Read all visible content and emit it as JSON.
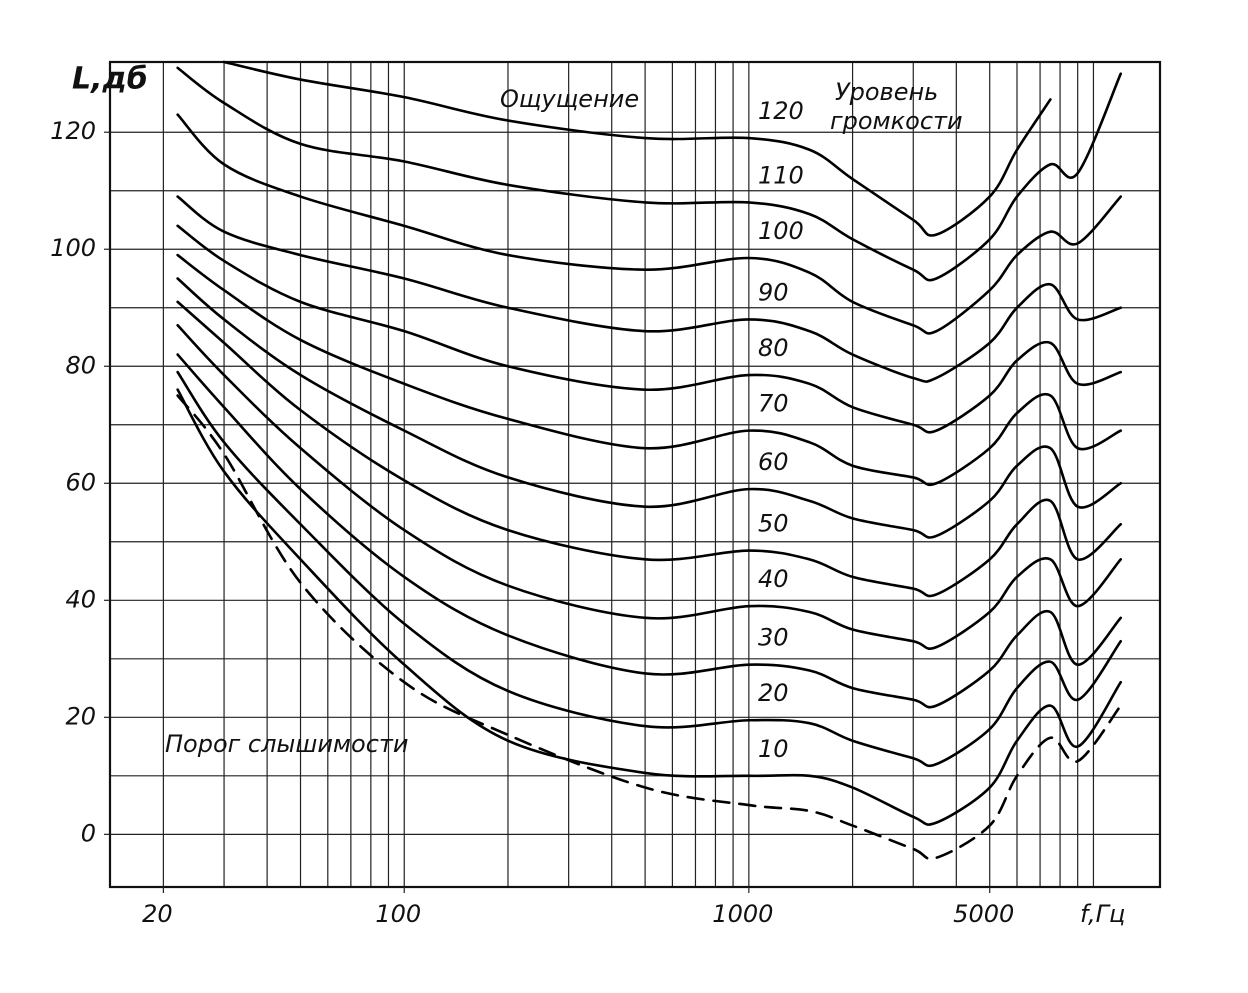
{
  "chart_data": {
    "type": "line",
    "x_log": true,
    "ylabel": "L,дб",
    "xlabel": "f,Гц",
    "annotations": [
      "Ощущение",
      "Уровень",
      "громкости"
    ],
    "xlim": [
      14,
      15600
    ],
    "ylim": [
      -9,
      132
    ],
    "xticks": [
      20,
      100,
      1000,
      5000
    ],
    "yticks": [
      0,
      20,
      40,
      60,
      80,
      100,
      120
    ],
    "xgrid": [
      20,
      30,
      40,
      50,
      60,
      70,
      80,
      90,
      100,
      200,
      300,
      400,
      500,
      600,
      700,
      800,
      900,
      1000,
      2000,
      3000,
      4000,
      5000,
      6000,
      7000,
      8000,
      9000,
      10000
    ],
    "ygrid": [
      0,
      10,
      20,
      30,
      40,
      50,
      60,
      70,
      80,
      90,
      100,
      110,
      120
    ],
    "x": [
      22,
      30,
      50,
      100,
      200,
      500,
      1000,
      1500,
      2000,
      3000,
      3500,
      5000,
      6000,
      7500,
      9000,
      12000
    ],
    "series": [
      {
        "name": "120",
        "color": "#000000",
        "values": [
          null,
          132,
          129,
          126,
          122,
          119,
          119,
          117,
          112,
          105,
          102.5,
          109,
          117,
          125.6,
          null,
          null
        ]
      },
      {
        "name": "110",
        "color": "#000000",
        "values": [
          131,
          125,
          118,
          115,
          111,
          108,
          108,
          106,
          101.7,
          96.5,
          95,
          101.7,
          109,
          114.5,
          113,
          130
        ]
      },
      {
        "name": "100",
        "color": "#000000",
        "values": [
          123,
          114.5,
          109,
          104,
          99,
          96.5,
          98.5,
          96,
          91,
          87,
          86,
          93,
          99,
          103,
          101,
          109
        ]
      },
      {
        "name": "90",
        "color": "#000000",
        "values": [
          109,
          103,
          99,
          95,
          90,
          86,
          88,
          86,
          82,
          78,
          78,
          84,
          90,
          94,
          88,
          90
        ]
      },
      {
        "name": "80",
        "color": "#000000",
        "values": [
          104,
          98,
          91,
          86,
          80,
          76,
          78.5,
          77,
          73,
          70,
          69,
          75,
          81,
          84,
          77,
          79
        ]
      },
      {
        "name": "70",
        "color": "#000000",
        "values": [
          99,
          93,
          84.5,
          77,
          71,
          66,
          69,
          67,
          63,
          61,
          60,
          66,
          72,
          75,
          66,
          69
        ]
      },
      {
        "name": "60",
        "color": "#000000",
        "values": [
          95,
          88,
          78.5,
          69,
          61,
          56,
          59,
          57,
          54,
          52,
          51,
          57,
          63,
          66,
          56,
          60
        ]
      },
      {
        "name": "50",
        "color": "#000000",
        "values": [
          91,
          84,
          72.5,
          60.5,
          52,
          47,
          48.5,
          47,
          44,
          42,
          41,
          47,
          53,
          57,
          47,
          53
        ]
      },
      {
        "name": "40",
        "color": "#000000",
        "values": [
          87,
          78.5,
          66,
          52,
          42.5,
          37,
          39,
          38,
          35,
          33,
          32,
          38,
          44,
          47,
          39,
          47
        ]
      },
      {
        "name": "30",
        "color": "#000000",
        "values": [
          82,
          73,
          59,
          44,
          34,
          27.5,
          29,
          28,
          25,
          23,
          22,
          28,
          34,
          38,
          29,
          37
        ]
      },
      {
        "name": "20",
        "color": "#000000",
        "values": [
          79,
          67,
          53,
          36,
          24.5,
          18.5,
          19.5,
          19,
          16,
          13,
          12,
          18,
          25,
          29.5,
          23,
          33
        ]
      },
      {
        "name": "10",
        "color": "#000000",
        "values": [
          76,
          62,
          47,
          29,
          16,
          10.5,
          10,
          10,
          8,
          3,
          2,
          8,
          16,
          22,
          15,
          26
        ]
      },
      {
        "name": "Порог слышимости",
        "color": "#000000",
        "dashed": true,
        "values": [
          75,
          65,
          43,
          26,
          17,
          8,
          5,
          4,
          1.5,
          -2.5,
          -4,
          1.5,
          10,
          16.5,
          12.5,
          22
        ]
      }
    ]
  }
}
